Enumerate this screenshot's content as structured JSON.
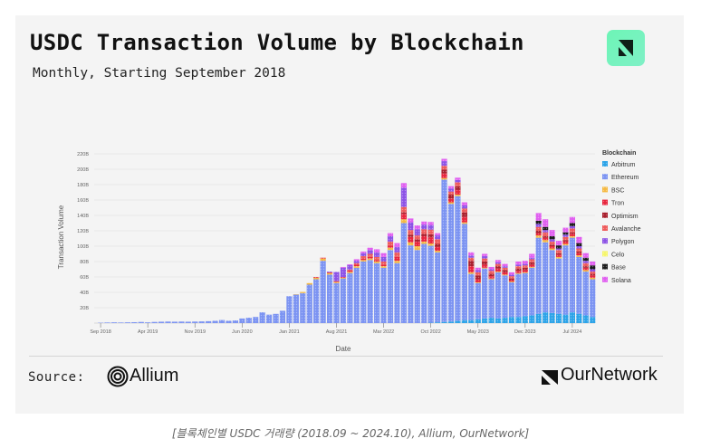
{
  "header": {
    "title": "USDC Transaction Volume by Blockchain",
    "subtitle": "Monthly, Starting September 2018",
    "logo_icon": "ournetwork-badge-icon"
  },
  "footer": {
    "source_label": "Source:",
    "source_name": "Allium",
    "source_icon": "allium-logo-icon",
    "brand_name": "OurNetwork",
    "brand_icon": "ournetwork-logo-icon"
  },
  "caption": "[블록체인별 USDC 거래량 (2018.09 ~ 2024.10), Allium, OurNetwork]",
  "colors": {
    "Arbitrum": "#2ba3e8",
    "Ethereum": "#7b93f2",
    "BSC": "#f5b942",
    "Tron": "#e8243c",
    "Optimism": "#a81e2c",
    "Avalanche": "#ee5a5a",
    "Polygon": "#8c52e6",
    "Celo": "#f5f56a",
    "Base": "#1a1a1a",
    "Solana": "#e05ef0"
  },
  "chart_data": {
    "type": "bar",
    "stacked": true,
    "title": "USDC Transaction Volume by Blockchain",
    "subtitle": "Monthly, Starting September 2018",
    "xlabel": "Date",
    "ylabel": "Transaction Volume",
    "ylim": [
      0,
      220
    ],
    "y_unit": "B",
    "yticks": [
      "20B",
      "40B",
      "60B",
      "80B",
      "100B",
      "120B",
      "140B",
      "160B",
      "180B",
      "200B",
      "220B"
    ],
    "ytick_values": [
      20,
      40,
      60,
      80,
      100,
      120,
      140,
      160,
      180,
      200,
      220
    ],
    "xticks": [
      "Sep 2018",
      "Apr 2019",
      "Nov 2019",
      "Jun 2020",
      "Jan 2021",
      "Aug 2021",
      "Mar 2022",
      "Oct 2022",
      "May 2023",
      "Dec 2023",
      "Jul 2024"
    ],
    "xtick_index": [
      0,
      7,
      14,
      21,
      28,
      35,
      42,
      49,
      56,
      63,
      70
    ],
    "grid": true,
    "legend_title": "Blockchain",
    "legend_position": "right",
    "categories": [
      "Sep 2018",
      "Oct 2018",
      "Nov 2018",
      "Dec 2018",
      "Jan 2019",
      "Feb 2019",
      "Mar 2019",
      "Apr 2019",
      "May 2019",
      "Jun 2019",
      "Jul 2019",
      "Aug 2019",
      "Sep 2019",
      "Oct 2019",
      "Nov 2019",
      "Dec 2019",
      "Jan 2020",
      "Feb 2020",
      "Mar 2020",
      "Apr 2020",
      "May 2020",
      "Jun 2020",
      "Jul 2020",
      "Aug 2020",
      "Sep 2020",
      "Oct 2020",
      "Nov 2020",
      "Dec 2020",
      "Jan 2021",
      "Feb 2021",
      "Mar 2021",
      "Apr 2021",
      "May 2021",
      "Jun 2021",
      "Jul 2021",
      "Aug 2021",
      "Sep 2021",
      "Oct 2021",
      "Nov 2021",
      "Dec 2021",
      "Jan 2022",
      "Feb 2022",
      "Mar 2022",
      "Apr 2022",
      "May 2022",
      "Jun 2022",
      "Jul 2022",
      "Aug 2022",
      "Sep 2022",
      "Oct 2022",
      "Nov 2022",
      "Dec 2022",
      "Jan 2023",
      "Feb 2023",
      "Mar 2023",
      "Apr 2023",
      "May 2023",
      "Jun 2023",
      "Jul 2023",
      "Aug 2023",
      "Sep 2023",
      "Oct 2023",
      "Nov 2023",
      "Dec 2023",
      "Jan 2024",
      "Feb 2024",
      "Mar 2024",
      "Apr 2024",
      "May 2024",
      "Jun 2024",
      "Jul 2024",
      "Aug 2024",
      "Sep 2024",
      "Oct 2024"
    ],
    "series": [
      {
        "name": "Arbitrum",
        "values": [
          0,
          0,
          0,
          0,
          0,
          0,
          0,
          0,
          0,
          0,
          0,
          0,
          0,
          0,
          0,
          0,
          0,
          0,
          0,
          0,
          0,
          0,
          0,
          0,
          0,
          0,
          0,
          0,
          0,
          0,
          0,
          0,
          0,
          0,
          0,
          0,
          0,
          0,
          0,
          0,
          0,
          0,
          0,
          0,
          0,
          0,
          0,
          0,
          0,
          0.5,
          1,
          1.5,
          2,
          3,
          4,
          4,
          5,
          6,
          7,
          6,
          7,
          8,
          8,
          9,
          10,
          12,
          14,
          13,
          12,
          11,
          14,
          12,
          10,
          8
        ]
      },
      {
        "name": "Ethereum",
        "values": [
          0.5,
          0.8,
          1,
          0.8,
          1,
          1.2,
          1.5,
          1,
          1.5,
          1.8,
          2,
          1.8,
          2,
          1.8,
          2,
          2.2,
          2.5,
          3,
          4,
          3,
          3.5,
          6,
          7,
          8,
          14,
          11,
          12,
          16,
          35,
          37,
          39,
          50,
          57,
          81,
          63,
          52,
          58,
          65,
          72,
          80,
          82,
          78,
          72,
          95,
          78,
          130,
          101,
          95,
          103,
          100,
          91,
          185,
          153,
          162,
          125,
          60,
          47,
          65,
          50,
          60,
          55,
          45,
          56,
          56,
          62,
          99,
          91,
          82,
          72,
          90,
          97,
          74,
          57,
          49
        ]
      },
      {
        "name": "BSC",
        "values": [
          0,
          0,
          0,
          0,
          0,
          0,
          0,
          0,
          0,
          0,
          0,
          0,
          0,
          0,
          0,
          0,
          0,
          0,
          0,
          0,
          0,
          0,
          0,
          0,
          0,
          0,
          0,
          0,
          0,
          0.5,
          1.5,
          2,
          2,
          3,
          2,
          1.5,
          1,
          1.5,
          2,
          2,
          2,
          2,
          2,
          3,
          3,
          5,
          4,
          5,
          3,
          3,
          2,
          2,
          2,
          2,
          2,
          2,
          1,
          1,
          1,
          1,
          1,
          1,
          1,
          1,
          1,
          3,
          3,
          2,
          2,
          2,
          2,
          2,
          2,
          2
        ]
      },
      {
        "name": "Tron",
        "values": [
          0,
          0,
          0,
          0,
          0,
          0,
          0,
          0,
          0,
          0,
          0,
          0,
          0,
          0,
          0,
          0,
          0,
          0,
          0,
          0,
          0,
          0,
          0,
          0,
          0,
          0,
          0,
          0,
          0,
          0,
          0,
          0,
          1,
          1,
          1,
          1,
          1,
          2,
          2,
          2,
          2,
          2,
          2,
          3,
          5,
          7,
          7,
          6,
          7,
          8,
          5,
          6,
          5,
          6,
          7,
          8,
          4,
          4,
          3,
          4,
          3,
          2,
          3,
          3,
          3,
          3,
          3,
          3,
          3,
          3,
          3,
          3,
          3,
          3
        ]
      },
      {
        "name": "Optimism",
        "values": [
          0,
          0,
          0,
          0,
          0,
          0,
          0,
          0,
          0,
          0,
          0,
          0,
          0,
          0,
          0,
          0,
          0,
          0,
          0,
          0,
          0,
          0,
          0,
          0,
          0,
          0,
          0,
          0,
          0,
          0,
          0,
          0,
          0,
          0,
          0,
          0,
          0,
          0,
          0,
          0,
          0,
          0,
          0,
          0,
          0,
          2,
          3,
          3,
          3,
          4,
          4,
          5,
          5,
          5,
          6,
          7,
          5,
          4,
          3,
          3,
          3,
          2,
          3,
          3,
          3,
          3,
          2,
          2,
          2,
          2,
          2,
          2,
          2,
          2
        ]
      },
      {
        "name": "Avalanche",
        "values": [
          0,
          0,
          0,
          0,
          0,
          0,
          0,
          0,
          0,
          0,
          0,
          0,
          0,
          0,
          0,
          0,
          0,
          0,
          0,
          0,
          0,
          0,
          0,
          0,
          0,
          0,
          0,
          0,
          0,
          0,
          0,
          0,
          0,
          0,
          0,
          0,
          0,
          1,
          2,
          3,
          4,
          4,
          4,
          5,
          6,
          7,
          6,
          5,
          6,
          6,
          6,
          5,
          4,
          5,
          5,
          4,
          4,
          4,
          4,
          3,
          3,
          3,
          3,
          3,
          4,
          5,
          5,
          4,
          4,
          4,
          5,
          4,
          4,
          3
        ]
      },
      {
        "name": "Polygon",
        "values": [
          0,
          0,
          0,
          0,
          0,
          0,
          0,
          0,
          0,
          0,
          0,
          0,
          0,
          0,
          0,
          0,
          0,
          0,
          0,
          0,
          0,
          0,
          0,
          0,
          0,
          0,
          0,
          0,
          0,
          0,
          0,
          0,
          0,
          0,
          1,
          12,
          12,
          6,
          3,
          4,
          5,
          6,
          6,
          7,
          7,
          25,
          10,
          8,
          6,
          6,
          5,
          6,
          4,
          3,
          4,
          3,
          3,
          3,
          2,
          2,
          2,
          2,
          2,
          2,
          2,
          4,
          3,
          3,
          2,
          3,
          3,
          3,
          3,
          3
        ]
      },
      {
        "name": "Celo",
        "values": [
          0,
          0,
          0,
          0,
          0,
          0,
          0,
          0,
          0,
          0,
          0,
          0,
          0,
          0,
          0,
          0,
          0,
          0,
          0,
          0,
          0,
          0,
          0,
          0,
          0,
          0,
          0,
          0,
          0,
          0,
          0,
          0,
          0,
          0,
          0,
          0,
          0,
          0,
          0,
          0,
          0,
          0,
          0,
          0,
          0,
          0,
          0,
          0,
          0,
          0,
          0,
          0,
          0,
          0,
          0,
          0,
          0,
          0,
          0,
          0,
          0,
          0,
          0,
          0,
          0,
          0,
          0,
          0,
          0,
          0,
          0,
          0,
          0,
          0
        ]
      },
      {
        "name": "Base",
        "values": [
          0,
          0,
          0,
          0,
          0,
          0,
          0,
          0,
          0,
          0,
          0,
          0,
          0,
          0,
          0,
          0,
          0,
          0,
          0,
          0,
          0,
          0,
          0,
          0,
          0,
          0,
          0,
          0,
          0,
          0,
          0,
          0,
          0,
          0,
          0,
          0,
          0,
          0,
          0,
          0,
          0,
          0,
          0,
          0,
          0,
          0,
          0,
          0,
          0,
          0,
          0,
          0,
          0,
          0,
          0,
          0,
          0,
          0,
          0,
          0,
          0,
          0,
          0,
          0,
          0,
          4,
          4,
          4,
          4,
          3,
          4,
          4,
          4,
          5
        ]
      },
      {
        "name": "Solana",
        "values": [
          0,
          0,
          0,
          0,
          0,
          0,
          0,
          0,
          0,
          0,
          0,
          0,
          0,
          0,
          0,
          0,
          0,
          0,
          0,
          0,
          0,
          0,
          0,
          0,
          0,
          0,
          0,
          0,
          0,
          0,
          0,
          0,
          0,
          0,
          0,
          0,
          1,
          1,
          2,
          2,
          3,
          4,
          5,
          4,
          5,
          6,
          5,
          5,
          4,
          4,
          3,
          3,
          3,
          3,
          4,
          4,
          3,
          3,
          3,
          3,
          3,
          3,
          4,
          4,
          5,
          10,
          10,
          8,
          6,
          6,
          8,
          8,
          6,
          5
        ]
      }
    ]
  }
}
